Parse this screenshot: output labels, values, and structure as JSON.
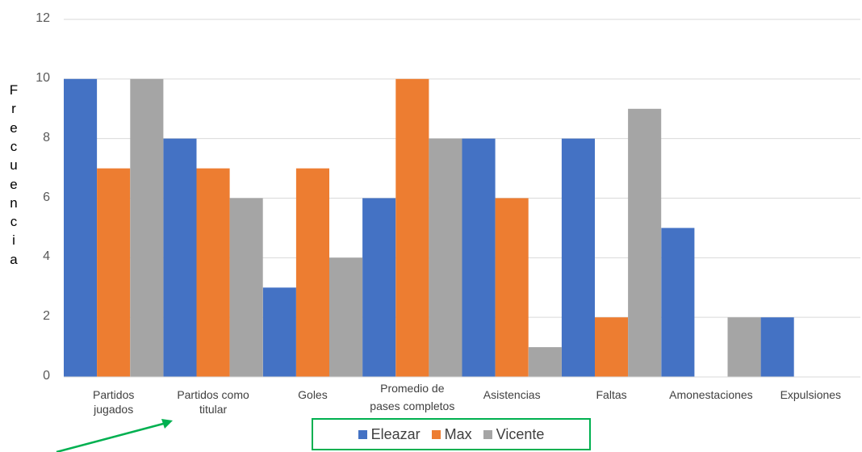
{
  "chart_data": {
    "type": "bar",
    "categories": [
      "Partidos\njugados",
      "Partidos como\ntitular",
      "Goles",
      "Promedio de\npases completos",
      "Asistencias",
      "Faltas",
      "Amonestaciones",
      "Expulsiones"
    ],
    "series": [
      {
        "name": "Eleazar",
        "color": "#4472c4",
        "values": [
          10,
          8,
          3,
          6,
          8,
          8,
          5,
          2
        ]
      },
      {
        "name": "Max",
        "color": "#ed7d31",
        "values": [
          7,
          7,
          7,
          10,
          6,
          2,
          0,
          0
        ]
      },
      {
        "name": "Vicente",
        "color": "#a5a5a5",
        "values": [
          10,
          6,
          4,
          8,
          1,
          9,
          2,
          0
        ]
      }
    ],
    "ylabel": "Frecuencia",
    "xlabel": "",
    "title": "",
    "ylim": [
      0,
      12
    ],
    "yticks": [
      "0",
      "2",
      "4",
      "6",
      "8",
      "10",
      "12"
    ],
    "grid": true,
    "legend_placement": "bottom",
    "legend_border_color": "#00b050",
    "annotation_arrow_color": "#00b050"
  }
}
